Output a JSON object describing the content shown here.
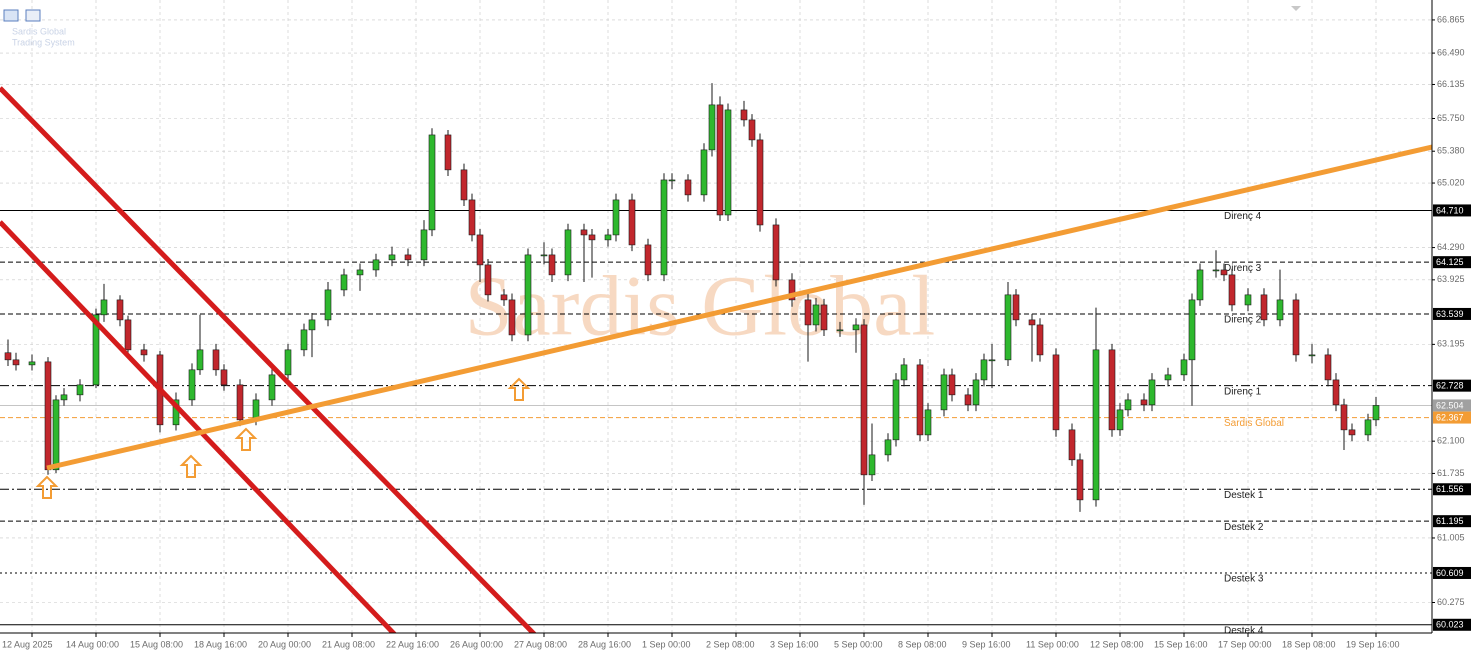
{
  "chart_data": {
    "type": "candlestick",
    "brand": "Sardis Global",
    "brand_subtitle": "Trading System",
    "watermark": "Sardis Global",
    "x": [
      1,
      2,
      4,
      6,
      7,
      8,
      10,
      12,
      13,
      15,
      16,
      18,
      20,
      22,
      24,
      25,
      27,
      28,
      30,
      32,
      34,
      36,
      38,
      39,
      41,
      43,
      45,
      47,
      49,
      51,
      53,
      54,
      56,
      58,
      59,
      60,
      61,
      63,
      64,
      66,
      68,
      69,
      71,
      73,
      74,
      76,
      77,
      79,
      81,
      83,
      84,
      86,
      88,
      89,
      90,
      91,
      93,
      94,
      95,
      97,
      99,
      101,
      102,
      103,
      105,
      107,
      108,
      109,
      111,
      112,
      113,
      115,
      116,
      118,
      119,
      121,
      122,
      123,
      124,
      126,
      127,
      129,
      130,
      132,
      134,
      135,
      137,
      139,
      140,
      141,
      143,
      144,
      146,
      148,
      149,
      150,
      152,
      153,
      154,
      156,
      158,
      160,
      162,
      164,
      166,
      167,
      168,
      169,
      171,
      172
    ],
    "open": [
      63.1,
      63.02,
      62.963,
      62.997,
      61.776,
      62.567,
      62.624,
      62.737,
      63.529,
      63.698,
      63.472,
      63.133,
      63.076,
      62.285,
      62.567,
      62.907,
      63.133,
      62.907,
      62.737,
      62.341,
      62.567,
      62.85,
      63.133,
      63.359,
      63.472,
      63.811,
      63.981,
      64.037,
      64.151,
      64.207,
      64.151,
      64.49,
      65.564,
      65.169,
      64.829,
      64.433,
      64.094,
      63.755,
      63.698,
      63.302,
      64.207,
      64.207,
      63.981,
      64.49,
      64.433,
      64.377,
      64.433,
      64.829,
      64.32,
      63.981,
      65.055,
      65.055,
      64.886,
      65.395,
      65.904,
      64.659,
      65.847,
      65.734,
      65.508,
      64.546,
      63.924,
      63.698,
      63.415,
      63.641,
      63.359,
      63.359,
      63.415,
      61.719,
      61.945,
      62.115,
      62.793,
      62.963,
      62.171,
      62.454,
      62.85,
      62.624,
      62.511,
      62.793,
      63.02,
      63.02,
      63.755,
      63.472,
      63.415,
      63.076,
      62.228,
      61.889,
      61.436,
      63.133,
      62.228,
      62.454,
      62.567,
      62.511,
      62.793,
      62.85,
      63.02,
      63.698,
      64.037,
      64.037,
      63.981,
      63.641,
      63.755,
      63.472,
      63.698,
      63.076,
      63.076,
      62.793,
      62.511,
      62.228,
      62.171,
      62.341
    ],
    "high": [
      63.25,
      63.1,
      63.08,
      63.05,
      62.62,
      62.7,
      62.8,
      63.6,
      63.88,
      63.75,
      63.52,
      63.2,
      63.12,
      62.65,
      62.98,
      63.53,
      63.2,
      62.97,
      62.8,
      62.64,
      62.92,
      63.2,
      63.43,
      63.55,
      63.9,
      64.05,
      64.11,
      64.22,
      64.3,
      64.28,
      64.6,
      65.64,
      65.62,
      65.24,
      64.9,
      64.5,
      64.16,
      63.82,
      63.77,
      64.28,
      64.35,
      64.28,
      64.56,
      64.56,
      64.5,
      64.5,
      64.9,
      64.9,
      64.39,
      65.13,
      65.13,
      65.12,
      65.47,
      66.15,
      66.0,
      65.92,
      65.95,
      65.8,
      65.58,
      64.62,
      64.0,
      63.77,
      63.72,
      63.71,
      63.45,
      63.49,
      63.48,
      62.3,
      62.19,
      62.87,
      63.04,
      63.03,
      62.53,
      62.92,
      62.92,
      62.7,
      62.87,
      63.09,
      63.2,
      63.9,
      63.82,
      63.54,
      63.49,
      63.15,
      62.3,
      61.96,
      63.61,
      63.2,
      62.53,
      62.64,
      62.64,
      62.87,
      62.93,
      63.09,
      63.77,
      64.11,
      64.26,
      64.11,
      64.05,
      63.83,
      63.83,
      64.04,
      63.77,
      63.2,
      63.15,
      62.87,
      62.58,
      62.3,
      62.41,
      62.6
    ],
    "low": [
      62.95,
      62.9,
      62.9,
      61.72,
      61.74,
      62.5,
      62.55,
      62.7,
      63.45,
      63.4,
      63.06,
      63.0,
      62.2,
      62.22,
      62.5,
      62.85,
      62.84,
      62.67,
      62.27,
      62.28,
      62.5,
      62.78,
      63.06,
      63.05,
      63.4,
      63.74,
      63.8,
      63.96,
      64.08,
      64.08,
      64.08,
      64.42,
      65.1,
      64.76,
      64.36,
      63.9,
      63.68,
      63.63,
      63.23,
      63.23,
      64.1,
      63.9,
      63.91,
      63.9,
      63.95,
      64.3,
      64.36,
      64.25,
      63.91,
      63.91,
      64.95,
      64.81,
      64.81,
      65.32,
      64.59,
      64.59,
      65.66,
      65.43,
      64.47,
      63.85,
      63.62,
      63.0,
      63.34,
      63.29,
      63.28,
      63.1,
      61.38,
      61.65,
      61.87,
      62.04,
      62.72,
      62.1,
      62.1,
      62.38,
      62.55,
      62.44,
      62.44,
      62.72,
      62.7,
      62.95,
      63.4,
      63.0,
      63.0,
      62.15,
      61.82,
      61.3,
      61.36,
      62.15,
      62.16,
      62.38,
      62.44,
      62.44,
      62.72,
      62.78,
      62.5,
      63.63,
      63.95,
      63.91,
      63.57,
      63.57,
      63.4,
      63.4,
      63.0,
      62.98,
      62.72,
      62.44,
      62.0,
      62.1,
      62.1,
      62.27
    ],
    "close": [
      63.02,
      62.963,
      62.997,
      61.776,
      62.567,
      62.624,
      62.737,
      63.529,
      63.698,
      63.472,
      63.133,
      63.076,
      62.285,
      62.567,
      62.907,
      63.133,
      62.907,
      62.737,
      62.341,
      62.567,
      62.85,
      63.133,
      63.359,
      63.472,
      63.811,
      63.981,
      64.037,
      64.151,
      64.207,
      64.151,
      64.49,
      65.564,
      65.169,
      64.829,
      64.433,
      64.094,
      63.755,
      63.698,
      63.302,
      64.207,
      64.207,
      63.981,
      64.49,
      64.433,
      64.377,
      64.433,
      64.829,
      64.32,
      63.981,
      65.055,
      65.055,
      64.886,
      65.395,
      65.904,
      64.659,
      65.847,
      65.734,
      65.508,
      64.546,
      63.924,
      63.698,
      63.415,
      63.641,
      63.359,
      63.359,
      63.415,
      61.719,
      61.945,
      62.115,
      62.793,
      62.963,
      62.171,
      62.454,
      62.85,
      62.624,
      62.511,
      62.793,
      63.02,
      63.02,
      63.755,
      63.472,
      63.415,
      63.076,
      62.228,
      61.889,
      61.436,
      63.133,
      62.228,
      62.454,
      62.567,
      62.511,
      62.793,
      62.85,
      63.02,
      63.698,
      64.037,
      64.037,
      63.981,
      63.641,
      63.755,
      63.472,
      63.698,
      63.076,
      63.076,
      62.793,
      62.511,
      62.228,
      62.171,
      62.341,
      62.504
    ],
    "up_color": "#2eb82e",
    "down_color": "#c1272d",
    "xlim": [
      0,
      179
    ],
    "ylim": [
      59.93,
      67.0
    ],
    "grid": true,
    "xticks": [
      {
        "value": 4,
        "label": "12 Aug 2025"
      },
      {
        "value": 12,
        "label": "14 Aug 00:00"
      },
      {
        "value": 20,
        "label": "15 Aug 08:00"
      },
      {
        "value": 28,
        "label": "18 Aug 16:00"
      },
      {
        "value": 36,
        "label": "20 Aug 00:00"
      },
      {
        "value": 44,
        "label": "21 Aug 08:00"
      },
      {
        "value": 52,
        "label": "22 Aug 16:00"
      },
      {
        "value": 60,
        "label": "26 Aug 00:00"
      },
      {
        "value": 68,
        "label": "27 Aug 08:00"
      },
      {
        "value": 76,
        "label": "28 Aug 16:00"
      },
      {
        "value": 84,
        "label": "1 Sep 00:00"
      },
      {
        "value": 92,
        "label": "2 Sep 08:00"
      },
      {
        "value": 100,
        "label": "3 Sep 16:00"
      },
      {
        "value": 108,
        "label": "5 Sep 00:00"
      },
      {
        "value": 116,
        "label": "8 Sep 08:00"
      },
      {
        "value": 124,
        "label": "9 Sep 16:00"
      },
      {
        "value": 132,
        "label": "11 Sep 00:00"
      },
      {
        "value": 140,
        "label": "12 Sep 08:00"
      },
      {
        "value": 148,
        "label": "15 Sep 16:00"
      },
      {
        "value": 156,
        "label": "17 Sep 00:00"
      },
      {
        "value": 164,
        "label": "18 Sep 08:00"
      },
      {
        "value": 172,
        "label": "19 Sep 16:00"
      }
    ],
    "yticks": [
      66.865,
      {
        "value": 66.49,
        "label": "66.490"
      },
      66.135,
      {
        "value": 65.75,
        "label": "65.750"
      },
      {
        "value": 65.38,
        "label": "65.380"
      },
      {
        "value": 65.02,
        "label": "65.020"
      },
      {
        "value": 64.29,
        "label": "64.290"
      },
      63.925,
      63.195,
      {
        "value": 62.1,
        "label": "62.100"
      },
      61.735,
      61.005,
      60.275
    ],
    "levels": [
      {
        "name": "Direnç 4",
        "value": 64.71,
        "value_label": "64.710",
        "style": "solid",
        "color": "#000000"
      },
      {
        "name": "Direnç 3",
        "value": 64.125,
        "style": "dashed",
        "color": "#000000"
      },
      {
        "name": "Direnç 2",
        "value": 63.539,
        "style": "dashed",
        "color": "#000000"
      },
      {
        "name": "Direnç 1",
        "value": 62.728,
        "style": "dashdot",
        "color": "#000000"
      },
      {
        "name": "Sardis Global",
        "value": 62.367,
        "style": "dashed",
        "color": "#f39c34"
      },
      {
        "name": "Destek 1",
        "value": 61.556,
        "style": "dashdot",
        "color": "#000000"
      },
      {
        "name": "Destek 2",
        "value": 61.195,
        "style": "dashed",
        "color": "#000000"
      },
      {
        "name": "Destek 3",
        "value": 60.609,
        "style": "dotted",
        "color": "#000000"
      },
      {
        "name": "Destek 4",
        "value": 60.023,
        "style": "solid",
        "color": "#000000"
      }
    ],
    "last_price": 62.504
  }
}
